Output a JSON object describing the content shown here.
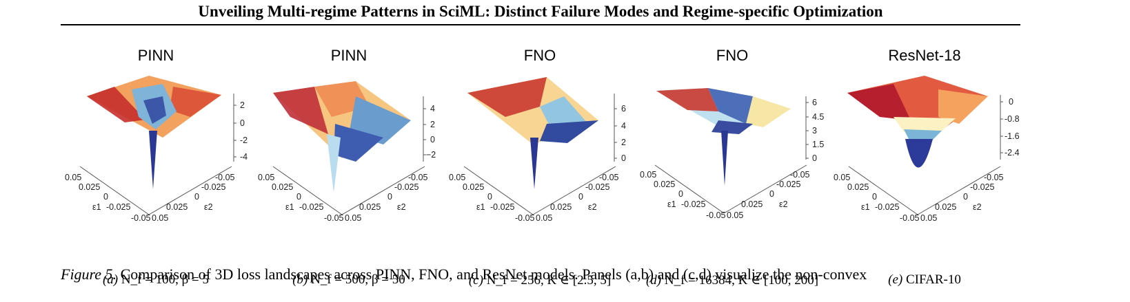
{
  "header": "Unveiling Multi-regime Patterns in SciML: Distinct Failure Modes and Regime-specific Optimization",
  "panels": [
    {
      "title": "PINN",
      "letter": "(a)",
      "caption": "N_f = 100,  β = 5",
      "z_ticks": [
        "2",
        "0",
        "-2",
        "-4"
      ],
      "e1_ticks": [
        "0.05",
        "0.025",
        "0",
        "-0.025",
        "-0.05"
      ],
      "e2_ticks": [
        "0.05",
        "0.025",
        "0",
        "-0.025",
        "-0.05"
      ],
      "e1_label": "ε1",
      "e2_label": "ε2"
    },
    {
      "title": "PINN",
      "letter": "(b)",
      "caption": "N_f = 500,  β = 50",
      "z_ticks": [
        "4",
        "2",
        "0",
        "−2"
      ],
      "e1_ticks": [
        "0.05",
        "0.025",
        "0",
        "-0.025",
        "-0.05"
      ],
      "e2_ticks": [
        "0.05",
        "0.025",
        "0",
        "-0.025",
        "-0.05"
      ],
      "e1_label": "ε1",
      "e2_label": "ε2"
    },
    {
      "title": "FNO",
      "letter": "(c)",
      "caption": "N_f = 256,  K ∈ [2.5, 5]",
      "z_ticks": [
        "6",
        "4",
        "2",
        "0"
      ],
      "e1_ticks": [
        "0.05",
        "0.025",
        "0",
        "-0.025",
        "-0.05"
      ],
      "e2_ticks": [
        "0.05",
        "0.025",
        "0",
        "-0.025",
        "-0.05"
      ],
      "e1_label": "ε1",
      "e2_label": "ε2"
    },
    {
      "title": "FNO",
      "letter": "(d)",
      "caption": "N_f = 16384,  K ∈ [100, 200]",
      "z_ticks": [
        "6",
        "4.5",
        "3",
        "1.5",
        "0"
      ],
      "e1_ticks": [
        "0.05",
        "0.025",
        "0",
        "-0.025",
        "-0.05"
      ],
      "e2_ticks": [
        "0.05",
        "0.025",
        "0",
        "-0.025",
        "-0.05"
      ],
      "e1_label": "ε1",
      "e2_label": "ε2"
    },
    {
      "title": "ResNet-18",
      "letter": "(e)",
      "caption": "CIFAR-10",
      "z_ticks": [
        "0",
        "-0.8",
        "-1.6",
        "-2.4"
      ],
      "e1_ticks": [
        "0.05",
        "0.025",
        "0",
        "-0.025",
        "-0.05"
      ],
      "e2_ticks": [
        "0.05",
        "0.025",
        "0",
        "-0.025",
        "-0.05"
      ],
      "e1_label": "ε1",
      "e2_label": "ε2"
    }
  ],
  "figure_caption": {
    "label": "Figure 5.",
    "text": "Comparison of 3D loss landscapes across PINN, FNO, and ResNet models. Panels (a,b) and (c,d) visualize the non-convex"
  },
  "colors": {
    "low": "#2c3a9a",
    "mid_low": "#8ec4e0",
    "mid": "#fbf4c0",
    "mid_high": "#f59a55",
    "high": "#b71d2c"
  }
}
